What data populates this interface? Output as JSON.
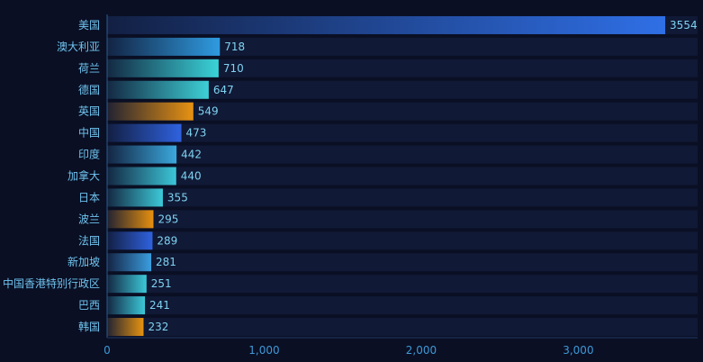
{
  "chart_data": {
    "type": "bar",
    "orientation": "horizontal",
    "categories": [
      "美国",
      "澳大利亚",
      "荷兰",
      "德国",
      "英国",
      "中国",
      "印度",
      "加拿大",
      "日本",
      "波兰",
      "法国",
      "新加坡",
      "中国香港特别行政区",
      "巴西",
      "韩国"
    ],
    "values": [
      3554,
      718,
      710,
      647,
      549,
      473,
      442,
      440,
      355,
      295,
      289,
      281,
      251,
      241,
      232
    ],
    "value_labels": [
      "3554",
      "718",
      "710",
      "647",
      "549",
      "473",
      "442",
      "440",
      "355",
      "295",
      "289",
      "281",
      "251",
      "241",
      "232"
    ],
    "xlim": [
      0,
      3760
    ],
    "xticks": [
      0,
      1000,
      2000,
      3000
    ],
    "xtick_labels": [
      "0",
      "1,000",
      "2,000",
      "3,000"
    ],
    "title": "",
    "xlabel": "",
    "ylabel": "",
    "grid": false,
    "bar_colors": [
      "#2f6fe6",
      "#2f9be0",
      "#3ad3d8",
      "#3ed0d6",
      "#e89212",
      "#2f62df",
      "#3aa8dc",
      "#3cc6d8",
      "#3ccad8",
      "#e6900f",
      "#2f62df",
      "#3a9edf",
      "#3cc8d8",
      "#3cc8d8",
      "#e69311"
    ],
    "background": "#0a0f24",
    "axis_color": "#3a6ea8"
  }
}
